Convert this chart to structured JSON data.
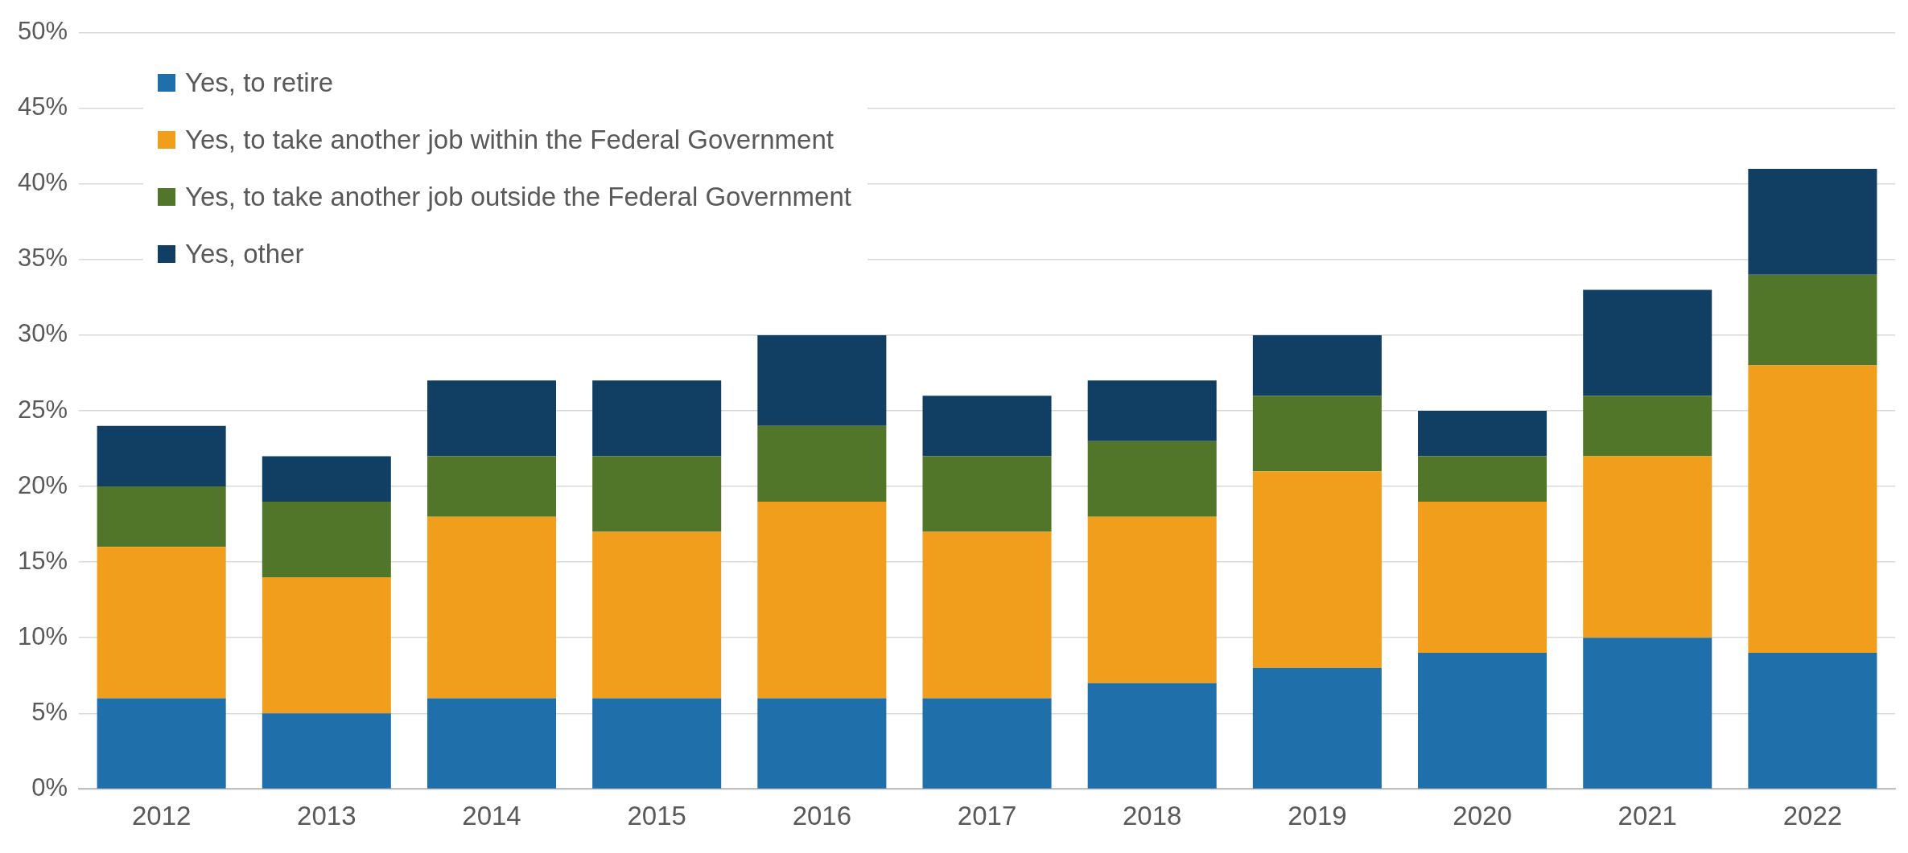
{
  "chart_data": {
    "type": "bar",
    "stacked": true,
    "grid": "y",
    "legend": "top left",
    "categories": [
      "2012",
      "2013",
      "2014",
      "2015",
      "2016",
      "2017",
      "2018",
      "2019",
      "2020",
      "2021",
      "2022"
    ],
    "ylim": [
      0,
      50
    ],
    "yticks": [
      {
        "value": 0,
        "label": "0%"
      },
      {
        "value": 5,
        "label": "5%"
      },
      {
        "value": 10,
        "label": "10%"
      },
      {
        "value": 15,
        "label": "15%"
      },
      {
        "value": 20,
        "label": "20%"
      },
      {
        "value": 25,
        "label": "25%"
      },
      {
        "value": 30,
        "label": "30%"
      },
      {
        "value": 35,
        "label": "35%"
      },
      {
        "value": 40,
        "label": "40%"
      },
      {
        "value": 45,
        "label": "45%"
      },
      {
        "value": 50,
        "label": "50%"
      }
    ],
    "series": [
      {
        "name": "Yes, to retire",
        "color": "#1f70aa",
        "values": [
          6,
          5,
          6,
          6,
          6,
          6,
          7,
          8,
          9,
          10,
          9
        ]
      },
      {
        "name": "Yes, to take another job within the Federal Government",
        "color": "#f09e1c",
        "values": [
          10,
          9,
          12,
          11,
          13,
          11,
          11,
          13,
          10,
          12,
          19
        ]
      },
      {
        "name": "Yes, to take another job outside the Federal Government",
        "color": "#527629",
        "values": [
          4,
          5,
          4,
          5,
          5,
          5,
          5,
          5,
          3,
          4,
          6
        ]
      },
      {
        "name": "Yes, other",
        "color": "#113f63",
        "values": [
          4,
          3,
          5,
          5,
          6,
          4,
          4,
          4,
          3,
          7,
          7
        ]
      }
    ]
  }
}
